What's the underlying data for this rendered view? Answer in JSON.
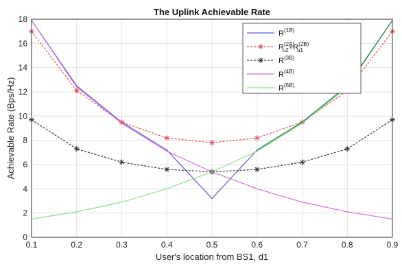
{
  "chart_data": {
    "type": "line",
    "title": "The Uplink Achievable Rate",
    "xlabel": "User's location from BS1, d1",
    "ylabel": "Achievable Rate (Bps/Hz)",
    "xlim": [
      0.1,
      0.9
    ],
    "ylim": [
      0,
      18
    ],
    "xticks": [
      "0.1",
      "0.2",
      "0.3",
      "0.4",
      "0.5",
      "0.6",
      "0.7",
      "0.8",
      "0.9"
    ],
    "yticks": [
      "0",
      "2",
      "4",
      "6",
      "8",
      "10",
      "12",
      "14",
      "16",
      "18"
    ],
    "grid": true,
    "legend_position": "top-right",
    "x": [
      0.1,
      0.2,
      0.3,
      0.4,
      0.5,
      0.6,
      0.7,
      0.8,
      0.9
    ],
    "series": [
      {
        "label_main": "R",
        "label_sup": "(1B)",
        "color": "#5a5ad6",
        "dash": "solid",
        "marker": "none",
        "values": [
          17.9,
          12.5,
          9.5,
          7.2,
          3.2,
          7.2,
          9.5,
          12.5,
          17.9
        ]
      },
      {
        "label_main": "R",
        "label_sub": "u2",
        "label_sup": "(2A)",
        "label_plus": "+R",
        "label_sub2": "u1",
        "label_sup2": "(2B)",
        "color": "#e05050",
        "dash": "dashed",
        "marker": "asterisk",
        "values": [
          17.0,
          12.1,
          9.5,
          8.2,
          7.8,
          8.2,
          9.5,
          12.1,
          17.0
        ]
      },
      {
        "label_main": "R",
        "label_sup": "(3B)",
        "color": "#333333",
        "dash": "dashed",
        "marker": "asterisk",
        "values": [
          9.7,
          7.3,
          6.2,
          5.6,
          5.4,
          5.6,
          6.2,
          7.3,
          9.7
        ]
      },
      {
        "label_main": "R",
        "label_sup": "(4B)",
        "color": "#d070d8",
        "dash": "solid",
        "marker": "none",
        "values": [
          17.9,
          12.4,
          9.4,
          7.1,
          5.4,
          4.0,
          2.9,
          2.1,
          1.5
        ]
      },
      {
        "label_main": "R",
        "label_sup": "(5B)",
        "color": "#88e088",
        "dash": "solid",
        "marker": "none",
        "values": [
          1.5,
          2.1,
          2.9,
          4.0,
          5.4,
          7.1,
          9.4,
          12.4,
          17.9
        ]
      }
    ],
    "overlay": {
      "color": "#2e8b57",
      "x": [
        0.6,
        0.7,
        0.8,
        0.9
      ],
      "values": [
        7.2,
        9.5,
        12.5,
        17.9
      ]
    }
  }
}
